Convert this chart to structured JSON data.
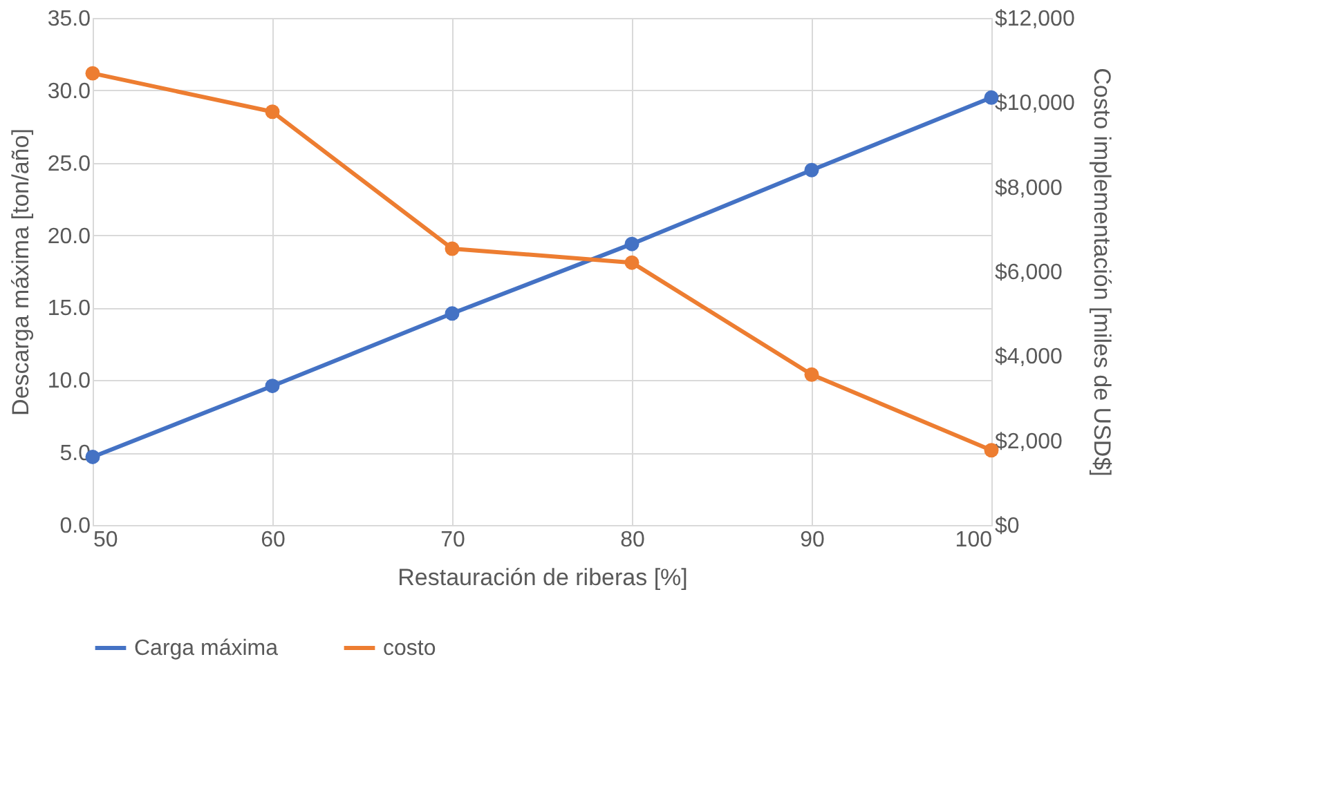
{
  "chart_data": {
    "type": "line",
    "xlabel": "Restauración de riberas [%]",
    "ylabel": "Descarga máxima [ton/año]",
    "y2label": "Costo implementación [miles de USD$]",
    "x": [
      50,
      60,
      70,
      80,
      90,
      100
    ],
    "series": [
      {
        "name": "Carga máxima",
        "color": "#4472c4",
        "values": [
          4.7,
          9.6,
          14.6,
          19.4,
          24.5,
          29.5
        ]
      },
      {
        "name": "costo",
        "color": "#ed7d31",
        "axis": "y2",
        "values": [
          10690,
          9780,
          6540,
          6210,
          3560,
          1770
        ]
      }
    ],
    "xlim": [
      50,
      100
    ],
    "xticks": [
      50,
      60,
      70,
      80,
      90,
      100
    ],
    "ylim": [
      0,
      35
    ],
    "yticks": [
      {
        "value": 0,
        "label": "0.0"
      },
      {
        "value": 5,
        "label": "5.0"
      },
      {
        "value": 10,
        "label": "10.0"
      },
      {
        "value": 15,
        "label": "15.0"
      },
      {
        "value": 20,
        "label": "20.0"
      },
      {
        "value": 25,
        "label": "25.0"
      },
      {
        "value": 30,
        "label": "30.0"
      },
      {
        "value": 35,
        "label": "35.0"
      }
    ],
    "y2lim": [
      0,
      12000
    ],
    "y2ticks": [
      {
        "value": 0,
        "label": "$0"
      },
      {
        "value": 2000,
        "label": "$2,000"
      },
      {
        "value": 4000,
        "label": "$4,000"
      },
      {
        "value": 6000,
        "label": "$6,000"
      },
      {
        "value": 8000,
        "label": "$8,000"
      },
      {
        "value": 10000,
        "label": "$10,000"
      },
      {
        "value": 12000,
        "label": "$12,000"
      }
    ],
    "grid": true,
    "legend": "bottom",
    "marker": "circle",
    "line_style": "solid"
  }
}
